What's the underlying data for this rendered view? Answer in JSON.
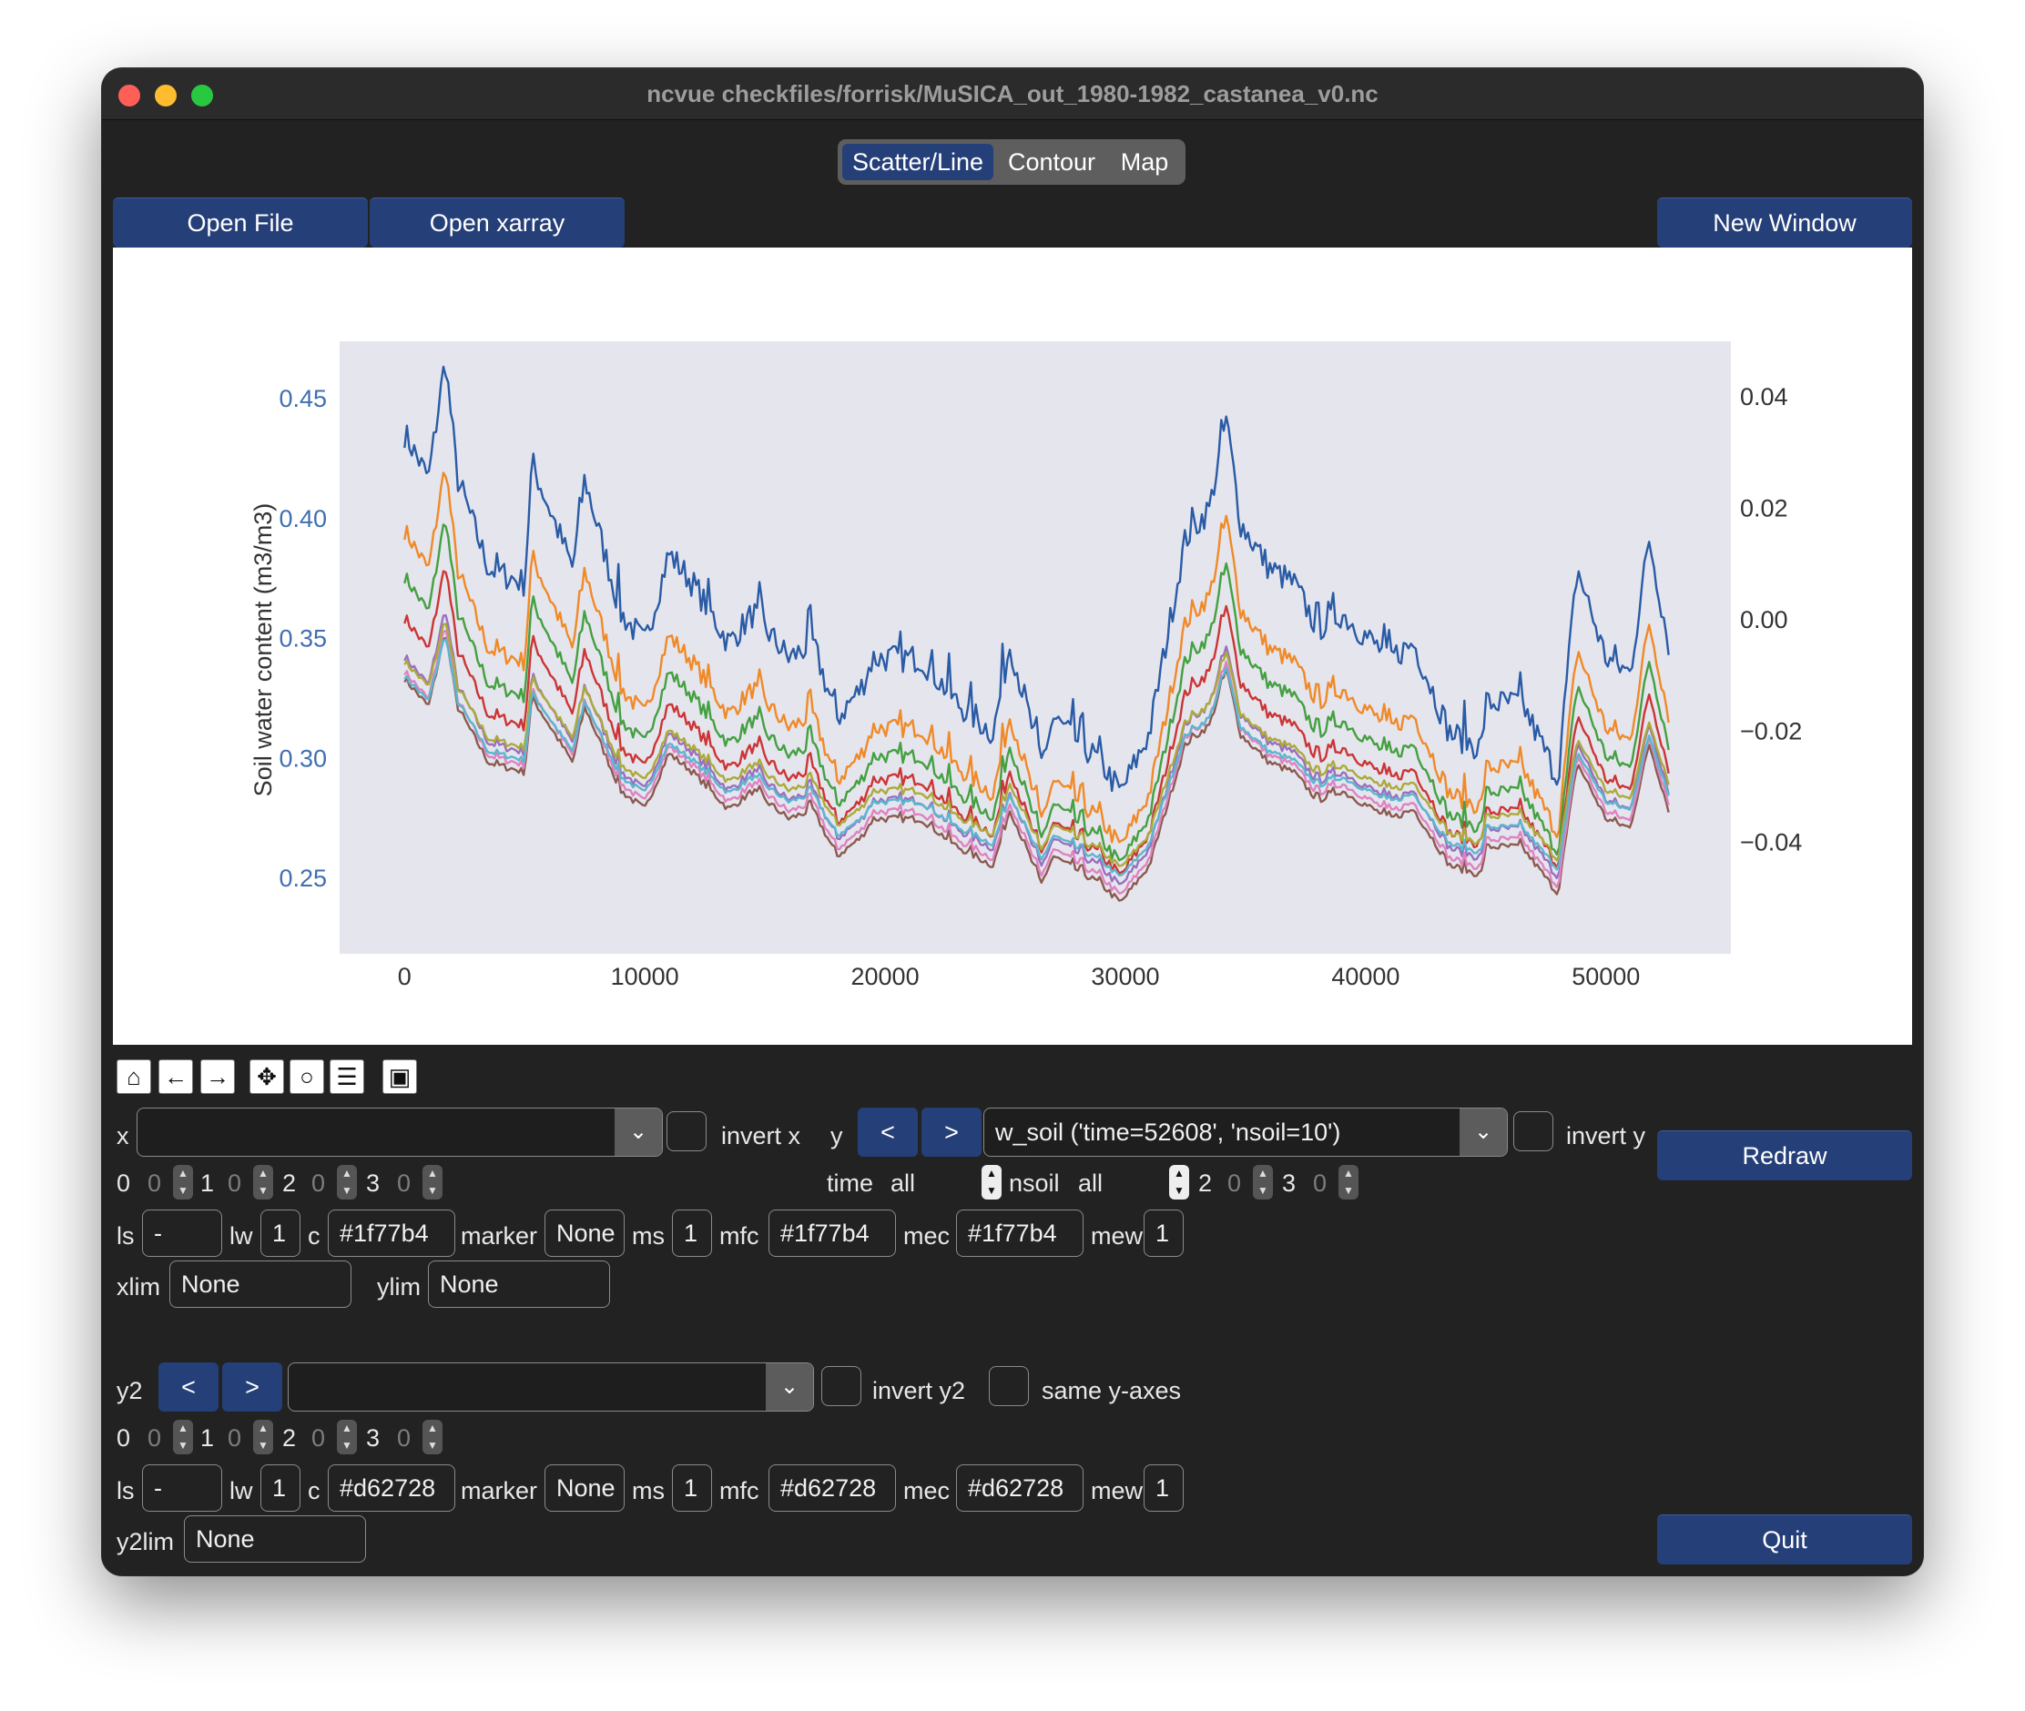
{
  "window": {
    "title": "ncvue checkfiles/forrisk/MuSICA_out_1980-1982_castanea_v0.nc",
    "traffic_lights": {
      "close": "#ff5f57",
      "minimize": "#febc2e",
      "zoom": "#28c840"
    }
  },
  "tabs": [
    "Scatter/Line",
    "Contour",
    "Map"
  ],
  "active_tab": "Scatter/Line",
  "buttons": {
    "open_file": "Open File",
    "open_xarray": "Open xarray",
    "new_window": "New Window",
    "redraw": "Redraw",
    "quit": "Quit"
  },
  "toolbar_icons": [
    "home-icon",
    "back-arrow-icon",
    "forward-arrow-icon",
    "pan-icon",
    "zoom-icon",
    "configure-subplots-icon",
    "save-icon"
  ],
  "x_panel": {
    "label": "x",
    "value": "",
    "invert_label": "invert x",
    "dims": [
      {
        "label": "0",
        "value": "0"
      },
      {
        "label": "1",
        "value": "0"
      },
      {
        "label": "2",
        "value": "0"
      },
      {
        "label": "3",
        "value": "0"
      }
    ]
  },
  "y_panel": {
    "label": "y",
    "prev": "<",
    "next": ">",
    "value": "w_soil ('time=52608', 'nsoil=10')",
    "invert_label": "invert y",
    "dims": [
      {
        "label": "time",
        "value": "all"
      },
      {
        "label": "nsoil",
        "value": "all"
      },
      {
        "label": "2",
        "value": "0"
      },
      {
        "label": "3",
        "value": "0"
      }
    ],
    "style": {
      "ls_label": "ls",
      "ls": "-",
      "lw_label": "lw",
      "lw": "1",
      "c_label": "c",
      "c": "#1f77b4",
      "marker_label": "marker",
      "marker": "None",
      "ms_label": "ms",
      "ms": "1",
      "mfc_label": "mfc",
      "mfc": "#1f77b4",
      "mec_label": "mec",
      "mec": "#1f77b4",
      "mew_label": "mew",
      "mew": "1"
    },
    "xlim_label": "xlim",
    "xlim": "None",
    "ylim_label": "ylim",
    "ylim": "None"
  },
  "y2_panel": {
    "label": "y2",
    "prev": "<",
    "next": ">",
    "value": "",
    "invert_label": "invert y2",
    "same_axes_label": "same y-axes",
    "dims": [
      {
        "label": "0",
        "value": "0"
      },
      {
        "label": "1",
        "value": "0"
      },
      {
        "label": "2",
        "value": "0"
      },
      {
        "label": "3",
        "value": "0"
      }
    ],
    "style": {
      "ls_label": "ls",
      "ls": "-",
      "lw_label": "lw",
      "lw": "1",
      "c_label": "c",
      "c": "#d62728",
      "marker_label": "marker",
      "marker": "None",
      "ms_label": "ms",
      "ms": "1",
      "mfc_label": "mfc",
      "mfc": "#d62728",
      "mec_label": "mec",
      "mec": "#d62728",
      "mew_label": "mew",
      "mew": "1"
    },
    "y2lim_label": "y2lim",
    "y2lim": "None"
  },
  "chart_data": {
    "type": "line",
    "ylabel": "Soil water content (m3/m3)",
    "x_ticks": [
      "0",
      "10000",
      "20000",
      "30000",
      "40000",
      "50000"
    ],
    "y_ticks": [
      "0.45",
      "0.40",
      "0.35",
      "0.30",
      "0.25"
    ],
    "y2_ticks": [
      "0.04",
      "0.02",
      "0.00",
      "−0.02",
      "−0.04"
    ],
    "xlim": [
      -2700,
      55200
    ],
    "ylim": [
      0.2185,
      0.474
    ],
    "y2lim": [
      -0.06,
      0.05
    ],
    "grid": false,
    "plot_background": "#e5e5ee",
    "ytick_color": "#3f6fb0",
    "colors": [
      "#2a5ba5",
      "#f08a28",
      "#44a040",
      "#cc3535",
      "#9a70be",
      "#8c5a4e",
      "#de83c1",
      "#acaa3a",
      "#5ab7cf"
    ],
    "base_profile": {
      "x": [
        0,
        1000,
        1700,
        2200,
        3500,
        5000,
        5300,
        7000,
        7500,
        9000,
        10000,
        11000,
        12000,
        13500,
        14500,
        16000,
        17000,
        18000,
        19000,
        19500,
        21500,
        23000,
        24500,
        25200,
        26500,
        27000,
        29000,
        29800,
        31000,
        32500,
        33500,
        34200,
        34800,
        36000,
        37000,
        38000,
        39000,
        41000,
        42000,
        43500,
        44800,
        45000,
        46500,
        48000,
        48800,
        50000,
        51000,
        51800,
        52608
      ],
      "y": [
        0.375,
        0.36,
        0.4,
        0.36,
        0.33,
        0.325,
        0.365,
        0.33,
        0.36,
        0.315,
        0.305,
        0.335,
        0.325,
        0.305,
        0.315,
        0.3,
        0.305,
        0.28,
        0.29,
        0.3,
        0.3,
        0.285,
        0.275,
        0.305,
        0.265,
        0.28,
        0.265,
        0.255,
        0.275,
        0.34,
        0.35,
        0.38,
        0.345,
        0.33,
        0.325,
        0.31,
        0.315,
        0.3,
        0.305,
        0.275,
        0.27,
        0.285,
        0.285,
        0.26,
        0.33,
        0.3,
        0.295,
        0.34,
        0.305
      ]
    },
    "series": [
      {
        "offset": 0.045,
        "amp": 1.25,
        "noise": 0.006
      },
      {
        "offset": 0.014,
        "amp": 1.1,
        "noise": 0.004
      },
      {
        "offset": 0.001,
        "amp": 1.0,
        "noise": 0.003
      },
      {
        "offset": -0.01,
        "amp": 0.9,
        "noise": 0.0025
      },
      {
        "offset": -0.02,
        "amp": 0.8,
        "noise": 0.0018
      },
      {
        "offset": -0.028,
        "amp": 0.78,
        "noise": 0.0015
      },
      {
        "offset": -0.025,
        "amp": 0.78,
        "noise": 0.0015
      },
      {
        "offset": -0.017,
        "amp": 0.72,
        "noise": 0.0015
      },
      {
        "offset": -0.022,
        "amp": 0.7,
        "noise": 0.0012
      }
    ]
  }
}
